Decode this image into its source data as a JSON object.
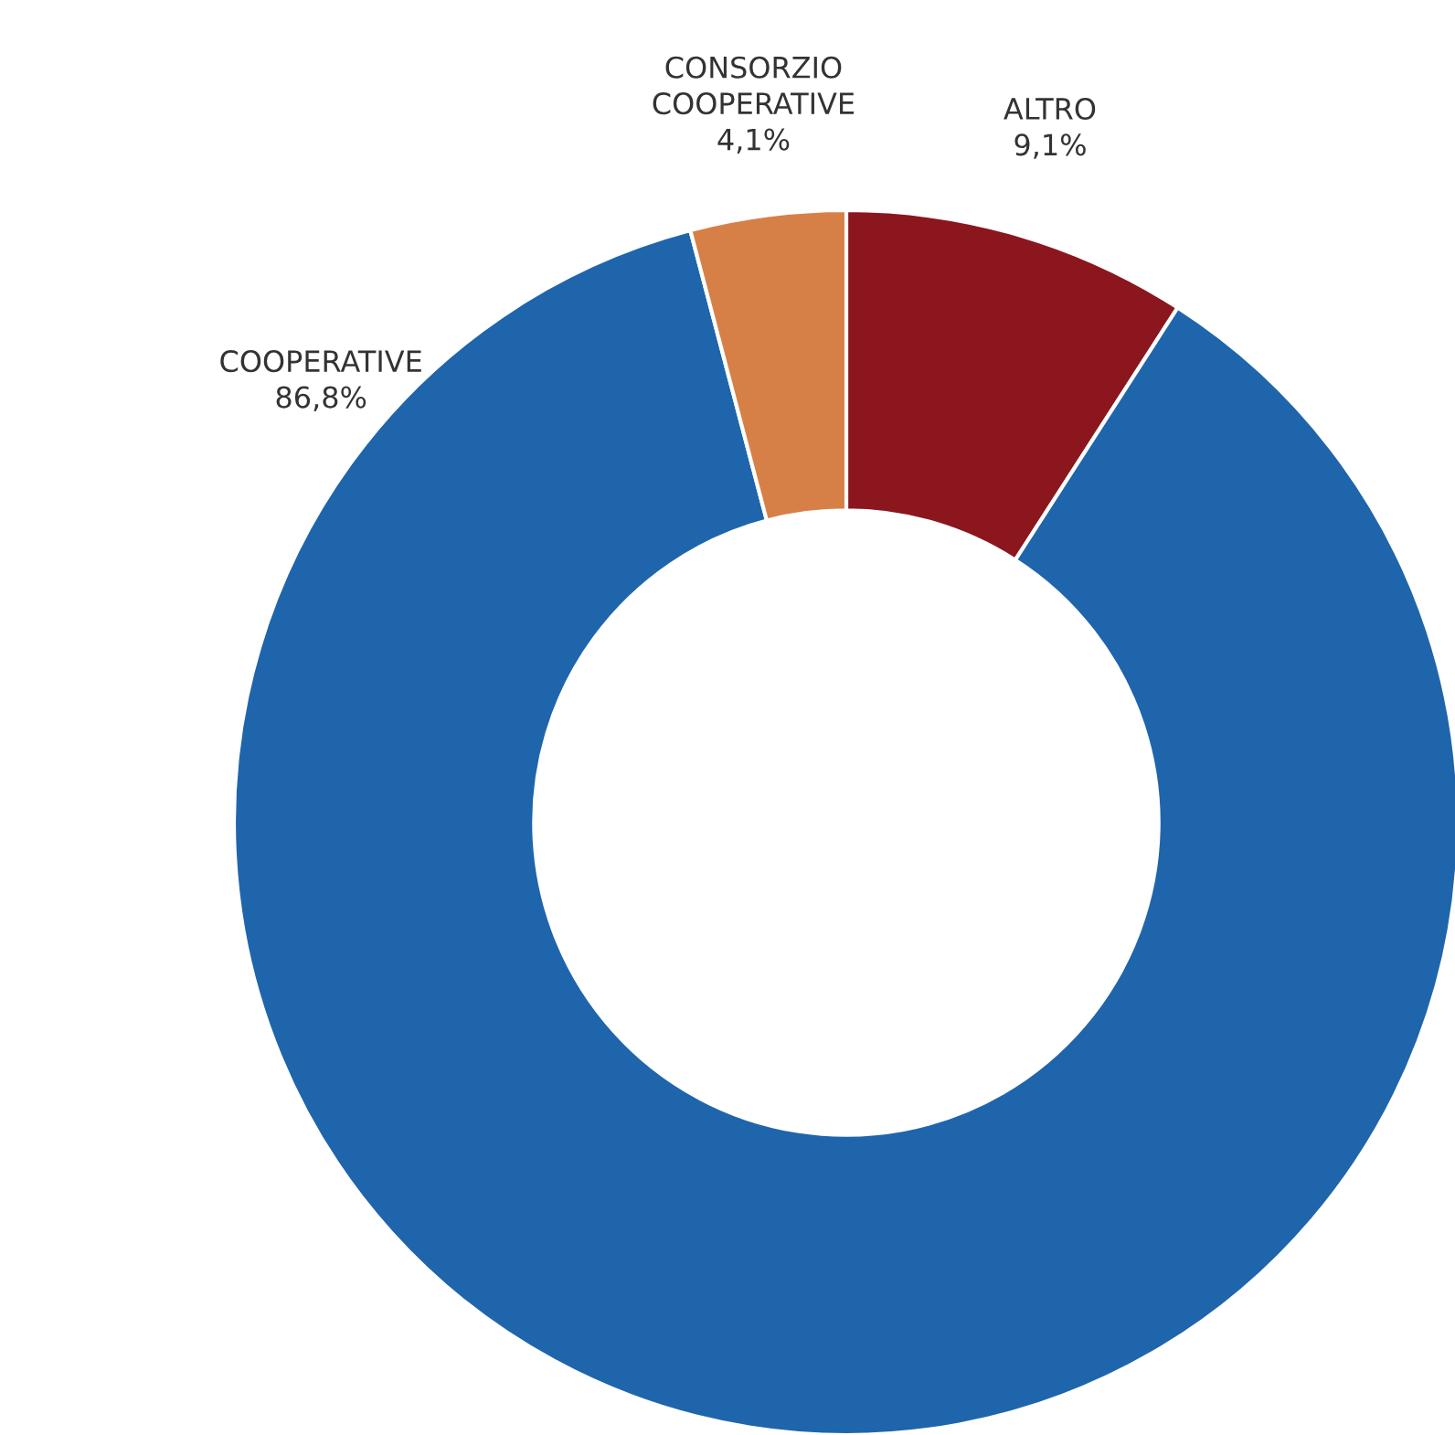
{
  "chart_data": {
    "type": "donut",
    "categories": [
      "ALTRO",
      "COOPERATIVE",
      "CONSORZIO\nCOOPERATIVE"
    ],
    "values": [
      9.1,
      86.8,
      4.1
    ],
    "colors": [
      "#8b161d",
      "#1f65ab",
      "#d68048"
    ],
    "value_labels": [
      "9,1%",
      "86,8%",
      "4,1%"
    ],
    "legend": false
  }
}
